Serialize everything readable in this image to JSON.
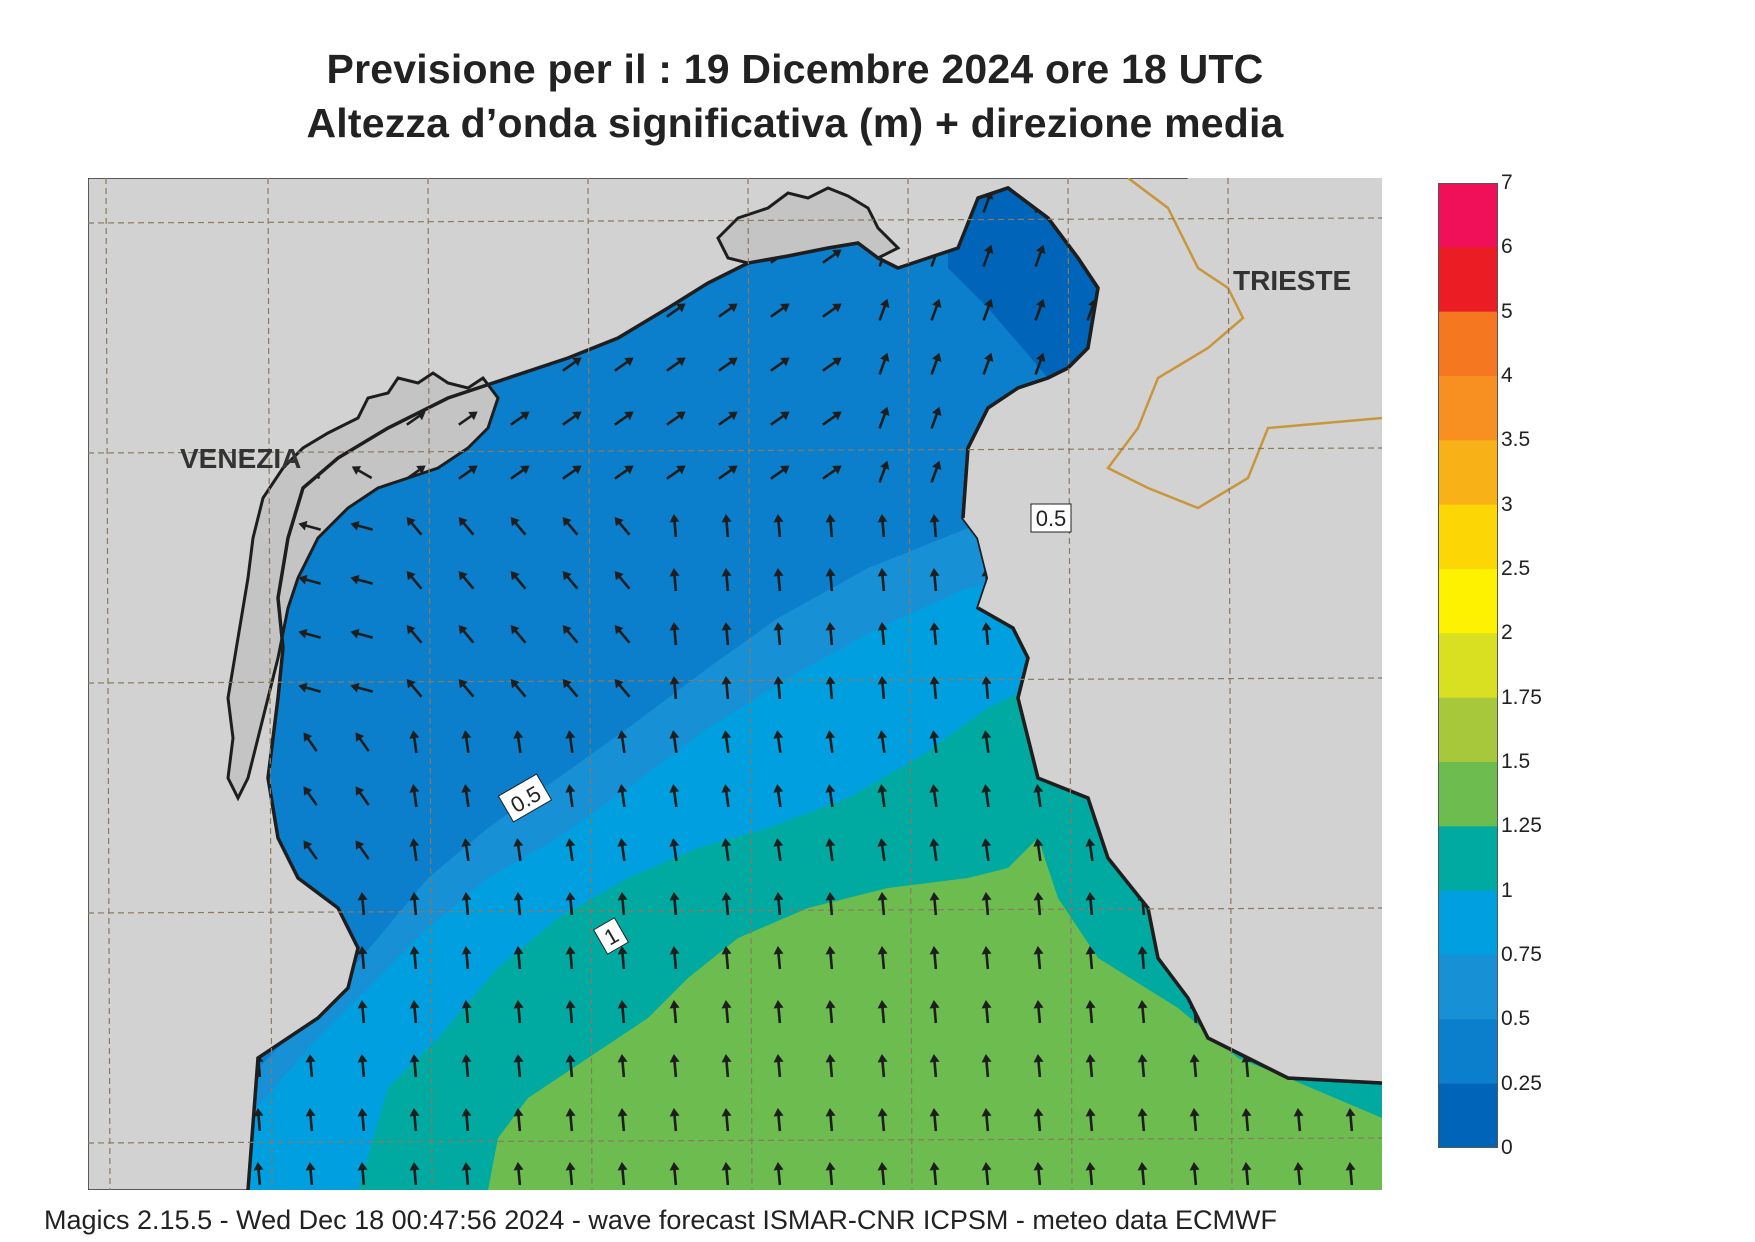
{
  "header": {
    "title_line1": "Previsione per il  :  19 Dicembre  2024   ore 18 UTC",
    "title_line2": "Altezza d’onda significativa (m) + direzione media"
  },
  "map": {
    "cities": [
      {
        "name": "VENEZIA"
      },
      {
        "name": "TRIESTE"
      }
    ],
    "contour_labels": [
      "0.5",
      "1",
      "0.5"
    ],
    "land_color": "#d2d2d2",
    "coastline_color": "#1e1e1e",
    "border_color": "#c8963c",
    "arrow_color": "#1e1e1e"
  },
  "colorbar": {
    "levels": [
      "7",
      "6",
      "5",
      "4",
      "3.5",
      "3",
      "2.5",
      "2",
      "1.75",
      "1.5",
      "1.25",
      "1",
      "0.75",
      "0.5",
      "0.25",
      "0"
    ],
    "colors": [
      "#f0105a",
      "#ec1c24",
      "#f57820",
      "#f79020",
      "#f9b118",
      "#fcd705",
      "#fff200",
      "#d9e021",
      "#a8c83c",
      "#6cbc50",
      "#00aaa0",
      "#00a0e0",
      "#1790d6",
      "#0b7ecc",
      "#0064b8"
    ]
  },
  "footer": {
    "text": "Magics 2.15.5 - Wed Dec 18 00:47:56 2024 - wave forecast  ISMAR-CNR  ICPSM - meteo data    ECMWF"
  }
}
